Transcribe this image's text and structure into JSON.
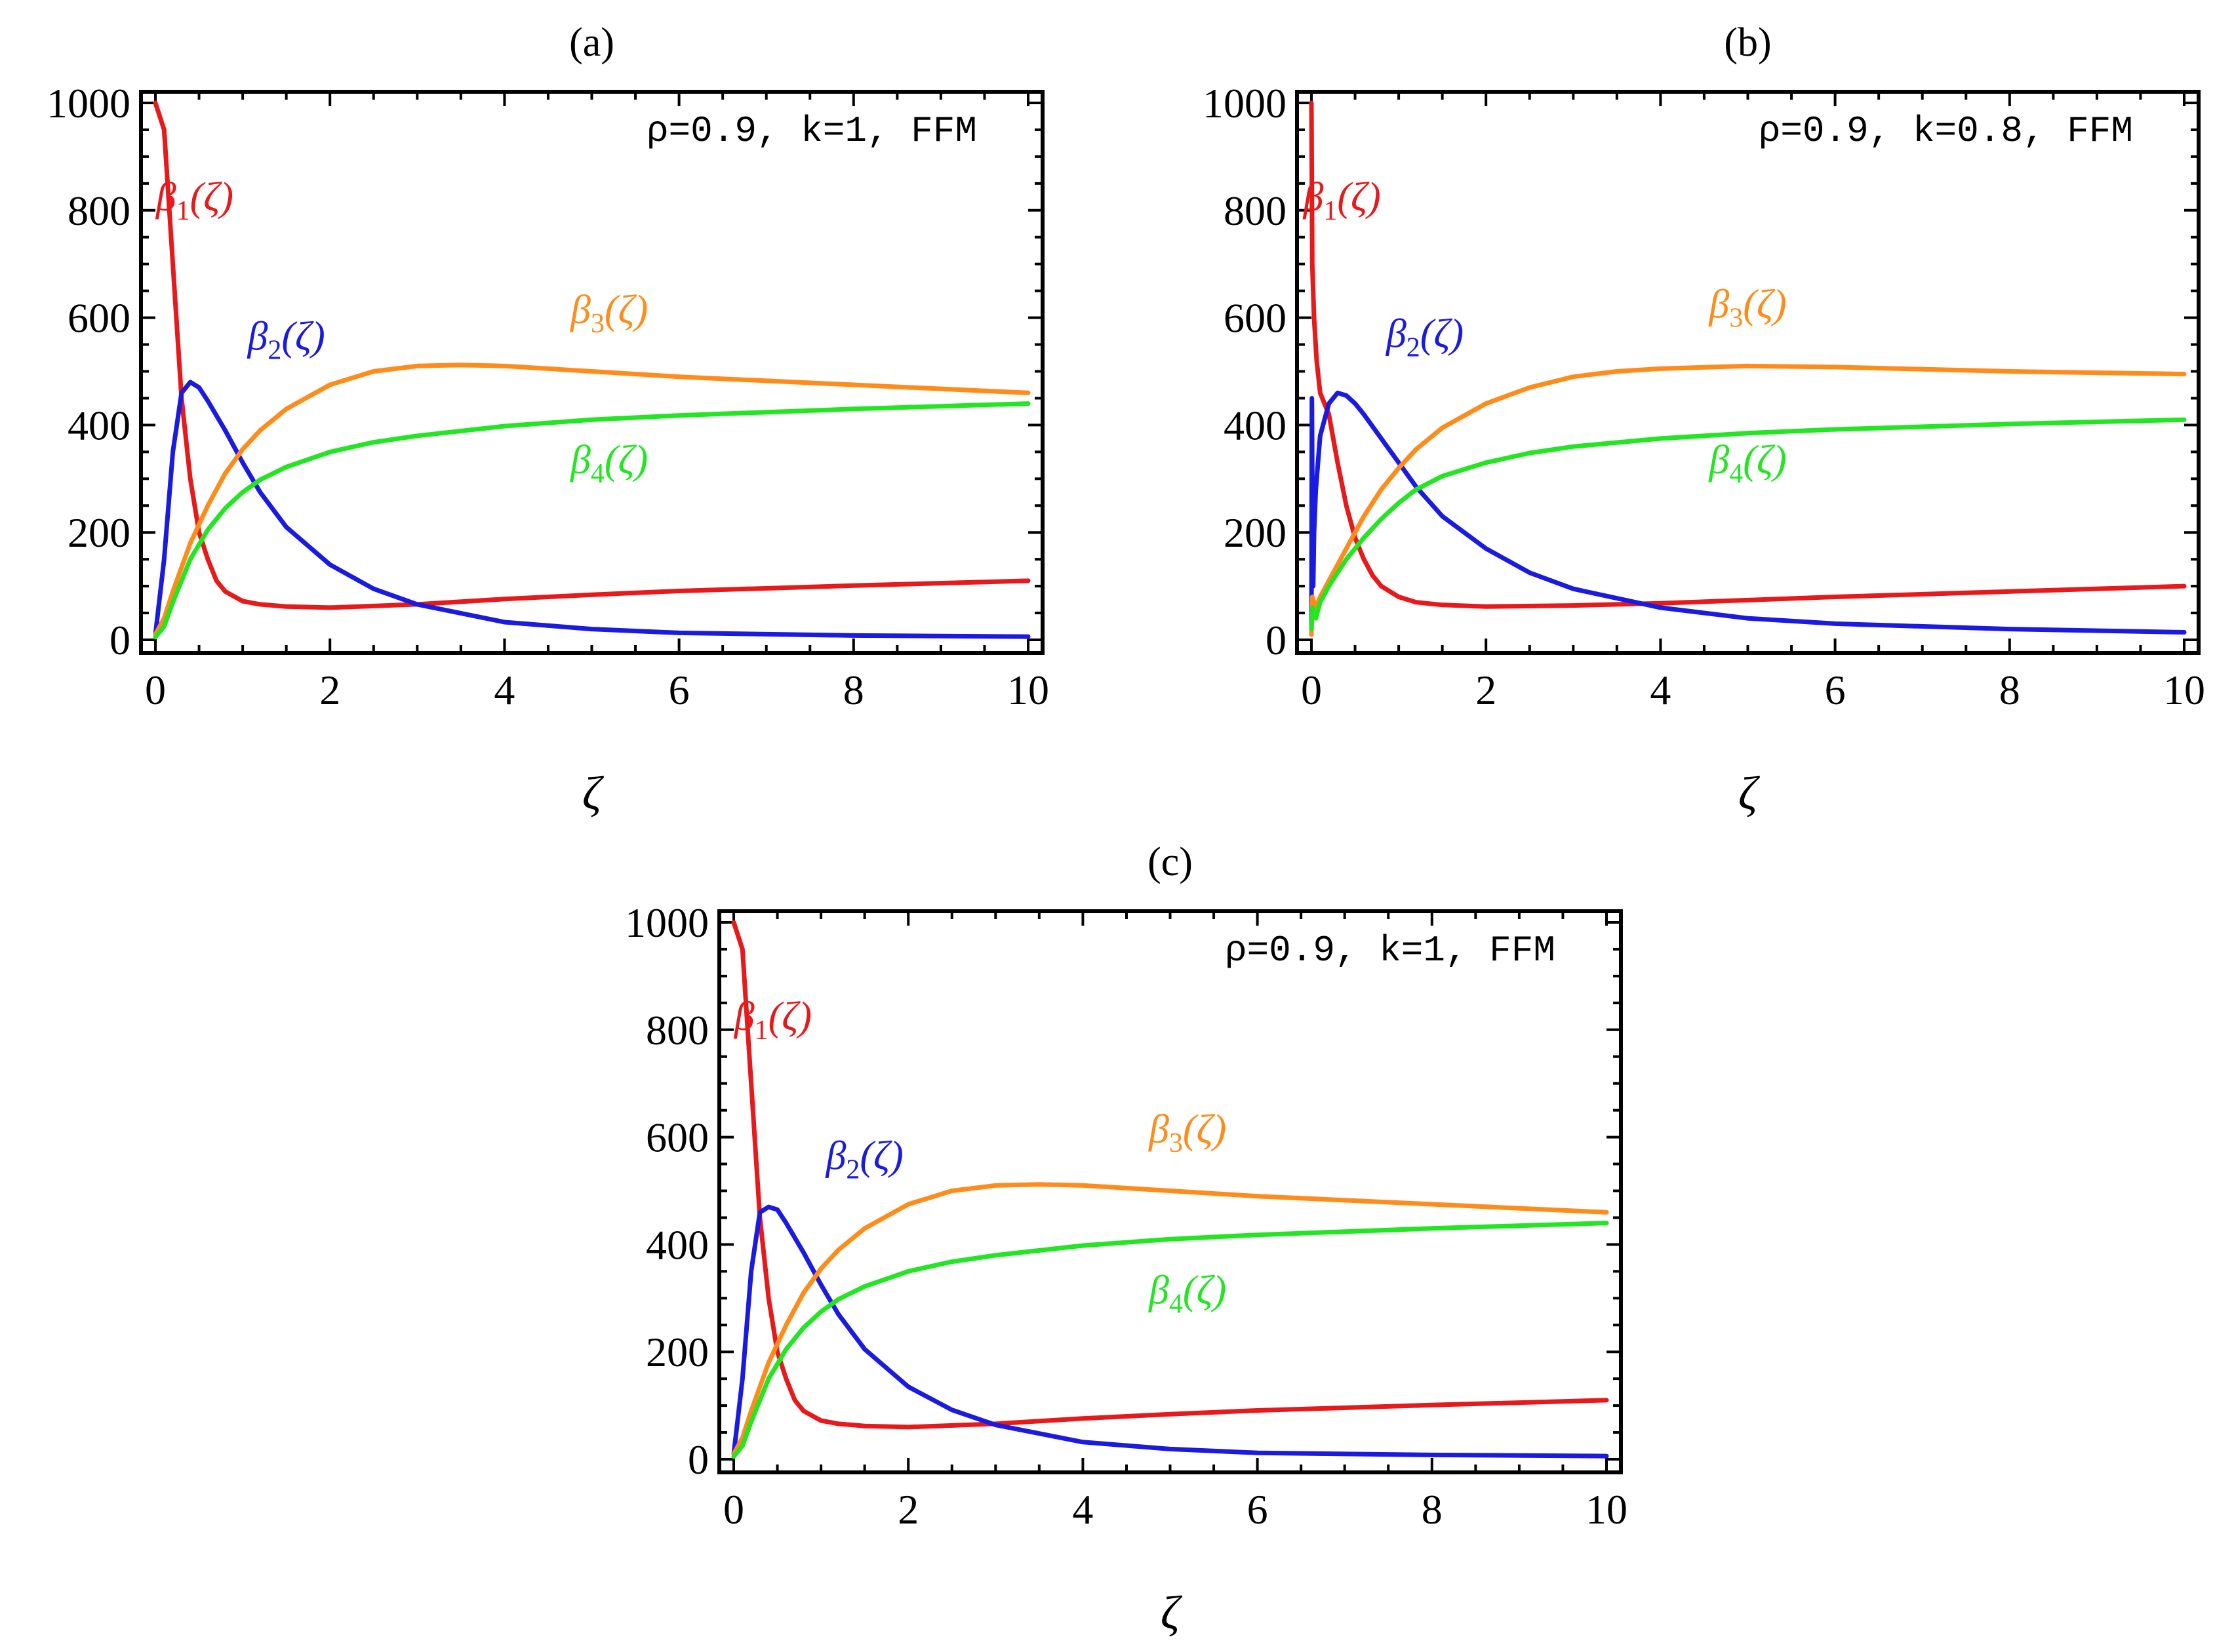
{
  "chart_data": [
    {
      "type": "line",
      "panel_label": "(a)",
      "annotation": "ρ=0.9, k=1, FFM",
      "xlabel": "ζ",
      "ylabel": "",
      "xlim": [
        0,
        10
      ],
      "ylim": [
        0,
        1000
      ],
      "xticks": [
        "0",
        "2",
        "4",
        "6",
        "8",
        "10"
      ],
      "yticks": [
        "0",
        "200",
        "400",
        "600",
        "800",
        "1000"
      ],
      "series": [
        {
          "name": "β1(ζ)",
          "base": "β",
          "sub": "1",
          "suffix": "(ζ)",
          "color": "#e8191a",
          "x": [
            0,
            0.1,
            0.2,
            0.3,
            0.4,
            0.5,
            0.6,
            0.7,
            0.8,
            1.0,
            1.2,
            1.5,
            2,
            3,
            4,
            5,
            6,
            8,
            10
          ],
          "y": [
            1000,
            950,
            700,
            450,
            300,
            200,
            150,
            110,
            90,
            72,
            66,
            62,
            60,
            66,
            76,
            84,
            91,
            101,
            110
          ]
        },
        {
          "name": "β2(ζ)",
          "base": "β",
          "sub": "2",
          "suffix": "(ζ)",
          "color": "#1a1ae0",
          "x": [
            0,
            0.1,
            0.2,
            0.3,
            0.4,
            0.5,
            0.6,
            0.8,
            1.0,
            1.2,
            1.5,
            2,
            2.5,
            3,
            4,
            5,
            6,
            8,
            10
          ],
          "y": [
            10,
            150,
            350,
            460,
            480,
            470,
            445,
            390,
            330,
            275,
            210,
            140,
            95,
            66,
            33,
            20,
            13,
            8,
            6
          ]
        },
        {
          "name": "β3(ζ)",
          "base": "β",
          "sub": "3",
          "suffix": "(ζ)",
          "color": "#ff8c1a",
          "x": [
            0,
            0.1,
            0.2,
            0.4,
            0.6,
            0.8,
            1.0,
            1.2,
            1.5,
            2,
            2.5,
            3,
            3.5,
            4,
            5,
            6,
            8,
            10
          ],
          "y": [
            10,
            40,
            90,
            180,
            250,
            310,
            355,
            390,
            430,
            475,
            500,
            510,
            512,
            510,
            500,
            490,
            475,
            460
          ]
        },
        {
          "name": "β4(ζ)",
          "base": "β",
          "sub": "4",
          "suffix": "(ζ)",
          "color": "#22e622",
          "x": [
            0,
            0.1,
            0.2,
            0.4,
            0.6,
            0.8,
            1.0,
            1.2,
            1.5,
            2,
            2.5,
            3,
            4,
            5,
            6,
            8,
            10
          ],
          "y": [
            5,
            25,
            70,
            150,
            205,
            245,
            275,
            298,
            322,
            350,
            368,
            380,
            398,
            410,
            418,
            430,
            440
          ]
        }
      ],
      "labels": [
        {
          "series": 0,
          "x": 0.45,
          "y": 800
        },
        {
          "series": 1,
          "x": 1.5,
          "y": 540
        },
        {
          "series": 2,
          "x": 5.2,
          "y": 590
        },
        {
          "series": 3,
          "x": 5.2,
          "y": 310
        }
      ]
    },
    {
      "type": "line",
      "panel_label": "(b)",
      "annotation": "ρ=0.9, k=0.8, FFM",
      "xlabel": "ζ",
      "ylabel": "",
      "xlim": [
        0,
        10
      ],
      "ylim": [
        0,
        1000
      ],
      "xticks": [
        "0",
        "2",
        "4",
        "6",
        "8",
        "10"
      ],
      "yticks": [
        "0",
        "200",
        "400",
        "600",
        "800",
        "1000"
      ],
      "series": [
        {
          "name": "β1(ζ)",
          "base": "β",
          "sub": "1",
          "suffix": "(ζ)",
          "color": "#e8191a",
          "x": [
            0,
            0.01,
            0.03,
            0.06,
            0.1,
            0.2,
            0.3,
            0.4,
            0.5,
            0.6,
            0.7,
            0.8,
            1.0,
            1.2,
            1.5,
            2,
            3,
            4,
            5,
            6,
            8,
            10
          ],
          "y": [
            1000,
            700,
            600,
            520,
            460,
            420,
            330,
            250,
            190,
            150,
            120,
            100,
            80,
            70,
            65,
            62,
            64,
            68,
            74,
            80,
            90,
            100
          ]
        },
        {
          "name": "β2(ζ)",
          "base": "β",
          "sub": "2",
          "suffix": "(ζ)",
          "color": "#1a1ae0",
          "x": [
            0,
            0.005,
            0.01,
            0.02,
            0.03,
            0.05,
            0.1,
            0.2,
            0.3,
            0.4,
            0.5,
            0.6,
            0.8,
            1.0,
            1.2,
            1.5,
            2,
            2.5,
            3,
            4,
            5,
            6,
            8,
            10
          ],
          "y": [
            10,
            450,
            300,
            100,
            200,
            280,
            380,
            440,
            460,
            455,
            440,
            420,
            375,
            330,
            285,
            230,
            170,
            125,
            95,
            60,
            40,
            30,
            20,
            14
          ]
        },
        {
          "name": "β3(ζ)",
          "base": "β",
          "sub": "3",
          "suffix": "(ζ)",
          "color": "#ff8c1a",
          "x": [
            0,
            0.01,
            0.05,
            0.1,
            0.2,
            0.4,
            0.6,
            0.8,
            1.0,
            1.2,
            1.5,
            2,
            2.5,
            3,
            3.5,
            4,
            5,
            6,
            8,
            10
          ],
          "y": [
            10,
            80,
            60,
            80,
            110,
            170,
            230,
            280,
            320,
            355,
            395,
            440,
            470,
            490,
            500,
            505,
            510,
            508,
            500,
            495
          ]
        },
        {
          "name": "β4(ζ)",
          "base": "β",
          "sub": "4",
          "suffix": "(ζ)",
          "color": "#22e622",
          "x": [
            0,
            0.01,
            0.05,
            0.1,
            0.2,
            0.4,
            0.6,
            0.8,
            1.0,
            1.2,
            1.5,
            2,
            2.5,
            3,
            4,
            5,
            6,
            8,
            10
          ],
          "y": [
            20,
            60,
            40,
            70,
            100,
            150,
            190,
            225,
            255,
            280,
            305,
            330,
            348,
            360,
            375,
            385,
            392,
            402,
            410
          ]
        }
      ],
      "labels": [
        {
          "series": 0,
          "x": 0.35,
          "y": 800
        },
        {
          "series": 1,
          "x": 1.3,
          "y": 545
        },
        {
          "series": 2,
          "x": 5.0,
          "y": 600
        },
        {
          "series": 3,
          "x": 5.0,
          "y": 310
        }
      ]
    },
    {
      "type": "line",
      "panel_label": "(c)",
      "annotation": "ρ=0.9, k=1, FFM",
      "xlabel": "ζ",
      "ylabel": "",
      "xlim": [
        0,
        10
      ],
      "ylim": [
        0,
        1000
      ],
      "xticks": [
        "0",
        "2",
        "4",
        "6",
        "8",
        "10"
      ],
      "yticks": [
        "0",
        "200",
        "400",
        "600",
        "800",
        "1000"
      ],
      "series": [
        {
          "name": "β1(ζ)",
          "base": "β",
          "sub": "1",
          "suffix": "(ζ)",
          "color": "#e8191a",
          "x": [
            0,
            0.1,
            0.2,
            0.3,
            0.4,
            0.5,
            0.6,
            0.7,
            0.8,
            1.0,
            1.2,
            1.5,
            2,
            3,
            4,
            5,
            6,
            8,
            10
          ],
          "y": [
            1000,
            950,
            700,
            450,
            300,
            200,
            150,
            110,
            90,
            72,
            66,
            62,
            60,
            66,
            76,
            84,
            91,
            101,
            110
          ]
        },
        {
          "name": "β2(ζ)",
          "base": "β",
          "sub": "2",
          "suffix": "(ζ)",
          "color": "#1a1ae0",
          "x": [
            0,
            0.1,
            0.2,
            0.3,
            0.4,
            0.5,
            0.6,
            0.8,
            1.0,
            1.2,
            1.5,
            2,
            2.5,
            3,
            4,
            5,
            6,
            8,
            10
          ],
          "y": [
            10,
            150,
            350,
            460,
            470,
            465,
            440,
            385,
            325,
            270,
            205,
            135,
            92,
            64,
            32,
            19,
            12,
            8,
            6
          ]
        },
        {
          "name": "β3(ζ)",
          "base": "β",
          "sub": "3",
          "suffix": "(ζ)",
          "color": "#ff8c1a",
          "x": [
            0,
            0.1,
            0.2,
            0.4,
            0.6,
            0.8,
            1.0,
            1.2,
            1.5,
            2,
            2.5,
            3,
            3.5,
            4,
            5,
            6,
            8,
            10
          ],
          "y": [
            10,
            40,
            90,
            180,
            250,
            310,
            355,
            390,
            430,
            475,
            500,
            510,
            512,
            510,
            500,
            490,
            475,
            460
          ]
        },
        {
          "name": "β4(ζ)",
          "base": "β",
          "sub": "4",
          "suffix": "(ζ)",
          "color": "#22e622",
          "x": [
            0,
            0.1,
            0.2,
            0.4,
            0.6,
            0.8,
            1.0,
            1.2,
            1.5,
            2,
            2.5,
            3,
            4,
            5,
            6,
            8,
            10
          ],
          "y": [
            5,
            25,
            70,
            150,
            205,
            245,
            275,
            298,
            322,
            350,
            368,
            380,
            398,
            410,
            418,
            430,
            440
          ]
        }
      ],
      "labels": [
        {
          "series": 0,
          "x": 0.45,
          "y": 800
        },
        {
          "series": 1,
          "x": 1.5,
          "y": 540
        },
        {
          "series": 2,
          "x": 5.2,
          "y": 590
        },
        {
          "series": 3,
          "x": 5.2,
          "y": 290
        }
      ]
    }
  ]
}
